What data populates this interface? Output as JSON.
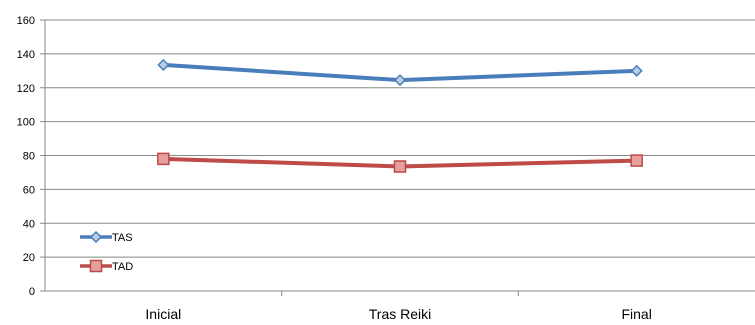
{
  "chart_data": {
    "type": "line",
    "categories": [
      "Inicial",
      "Tras Reiki",
      "Final"
    ],
    "series": [
      {
        "name": "TAS",
        "values": [
          133.5,
          124.5,
          130
        ],
        "color": "#4a7ebb",
        "marker": "diamond"
      },
      {
        "name": "TAD",
        "values": [
          78,
          73.5,
          77
        ],
        "color": "#be4b48",
        "marker": "square"
      }
    ],
    "ylim": [
      0,
      160
    ],
    "yticks": [
      "0",
      "20",
      "40",
      "60",
      "80",
      "100",
      "120",
      "140",
      "160"
    ],
    "grid": true,
    "legend": "bottom-left",
    "title": "",
    "xlabel": "",
    "ylabel": ""
  }
}
